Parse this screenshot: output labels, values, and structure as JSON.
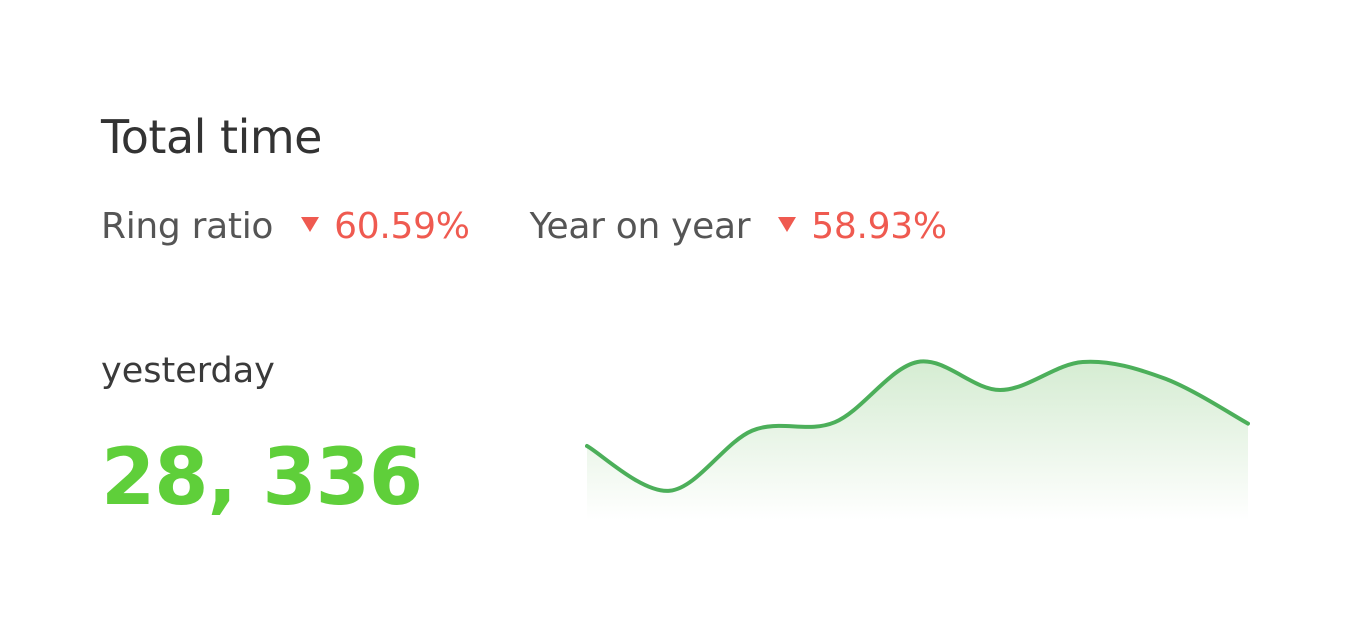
{
  "card": {
    "title": "Total time",
    "ring_ratio": {
      "label": "Ring ratio",
      "value": "60.59%",
      "direction": "down"
    },
    "year_on_year": {
      "label": "Year on year",
      "value": "58.93%",
      "direction": "down"
    },
    "period_label": "yesterday",
    "total_value": "28, 336"
  },
  "colors": {
    "text": "#333333",
    "down": "#ef5a50",
    "value": "#5fcf3a",
    "sparkline_stroke": "#4caf5a",
    "sparkline_fill": "#d5ecd2"
  },
  "chart_data": {
    "type": "area",
    "title": "",
    "xlabel": "",
    "ylabel": "",
    "x": [
      0,
      1,
      2,
      3,
      4,
      5,
      6,
      7,
      8
    ],
    "values": [
      40,
      8,
      51,
      57,
      100,
      80,
      100,
      88,
      56
    ],
    "ylim": [
      0,
      110
    ],
    "grid": false,
    "legend": "none"
  }
}
